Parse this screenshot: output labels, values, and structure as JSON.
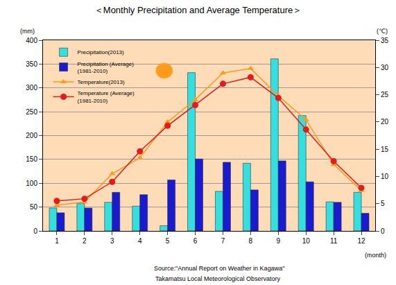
{
  "chart_data": {
    "type": "bar",
    "title": "＜Monthly Precipitation and Average Temperature＞",
    "xlabel": "(month)",
    "ylabel": "(mm)",
    "y2label": "(℃)",
    "categories": [
      1,
      2,
      3,
      4,
      5,
      6,
      7,
      8,
      9,
      10,
      11,
      12
    ],
    "series": [
      {
        "name": "Precipitation(2013)",
        "type": "bar",
        "color": "#33e0e0",
        "values": [
          48,
          58,
          60,
          52,
          11,
          332,
          83,
          142,
          361,
          242,
          61,
          81
        ]
      },
      {
        "name": "Precipitation (Average)\n(1981-2010)",
        "type": "bar",
        "color": "#1a1ad0",
        "values": [
          38,
          48,
          81,
          76,
          107,
          151,
          144,
          86,
          147,
          103,
          60,
          37
        ]
      },
      {
        "name": "Temperature(2013)",
        "type": "line",
        "axis": "y2",
        "color": "#ff9a1a",
        "marker": "triangle",
        "values": [
          4.7,
          5.3,
          10.5,
          13.4,
          20.0,
          24.1,
          29.0,
          29.8,
          24.8,
          20.4,
          12.2,
          7.4
        ]
      },
      {
        "name": "Temperature (Average)\n(1981-2010)",
        "type": "line",
        "axis": "y2",
        "color": "#e61a1a",
        "marker": "circle",
        "values": [
          5.5,
          5.9,
          9.0,
          14.6,
          19.3,
          23.1,
          27.0,
          28.2,
          24.4,
          18.6,
          12.8,
          7.9
        ]
      }
    ],
    "ylim": [
      0,
      400
    ],
    "yticks": [
      0,
      50,
      100,
      150,
      200,
      250,
      300,
      350,
      400
    ],
    "y2lim": [
      0,
      35
    ],
    "y2ticks": [
      0,
      5,
      10,
      15,
      20,
      25,
      30,
      35
    ],
    "grid": true,
    "legend": "upper left",
    "annotations": [
      "Source:\"Annual Report on Weather in Kagawa\"",
      "Takamatsu Local Meteorological Observatory"
    ]
  }
}
